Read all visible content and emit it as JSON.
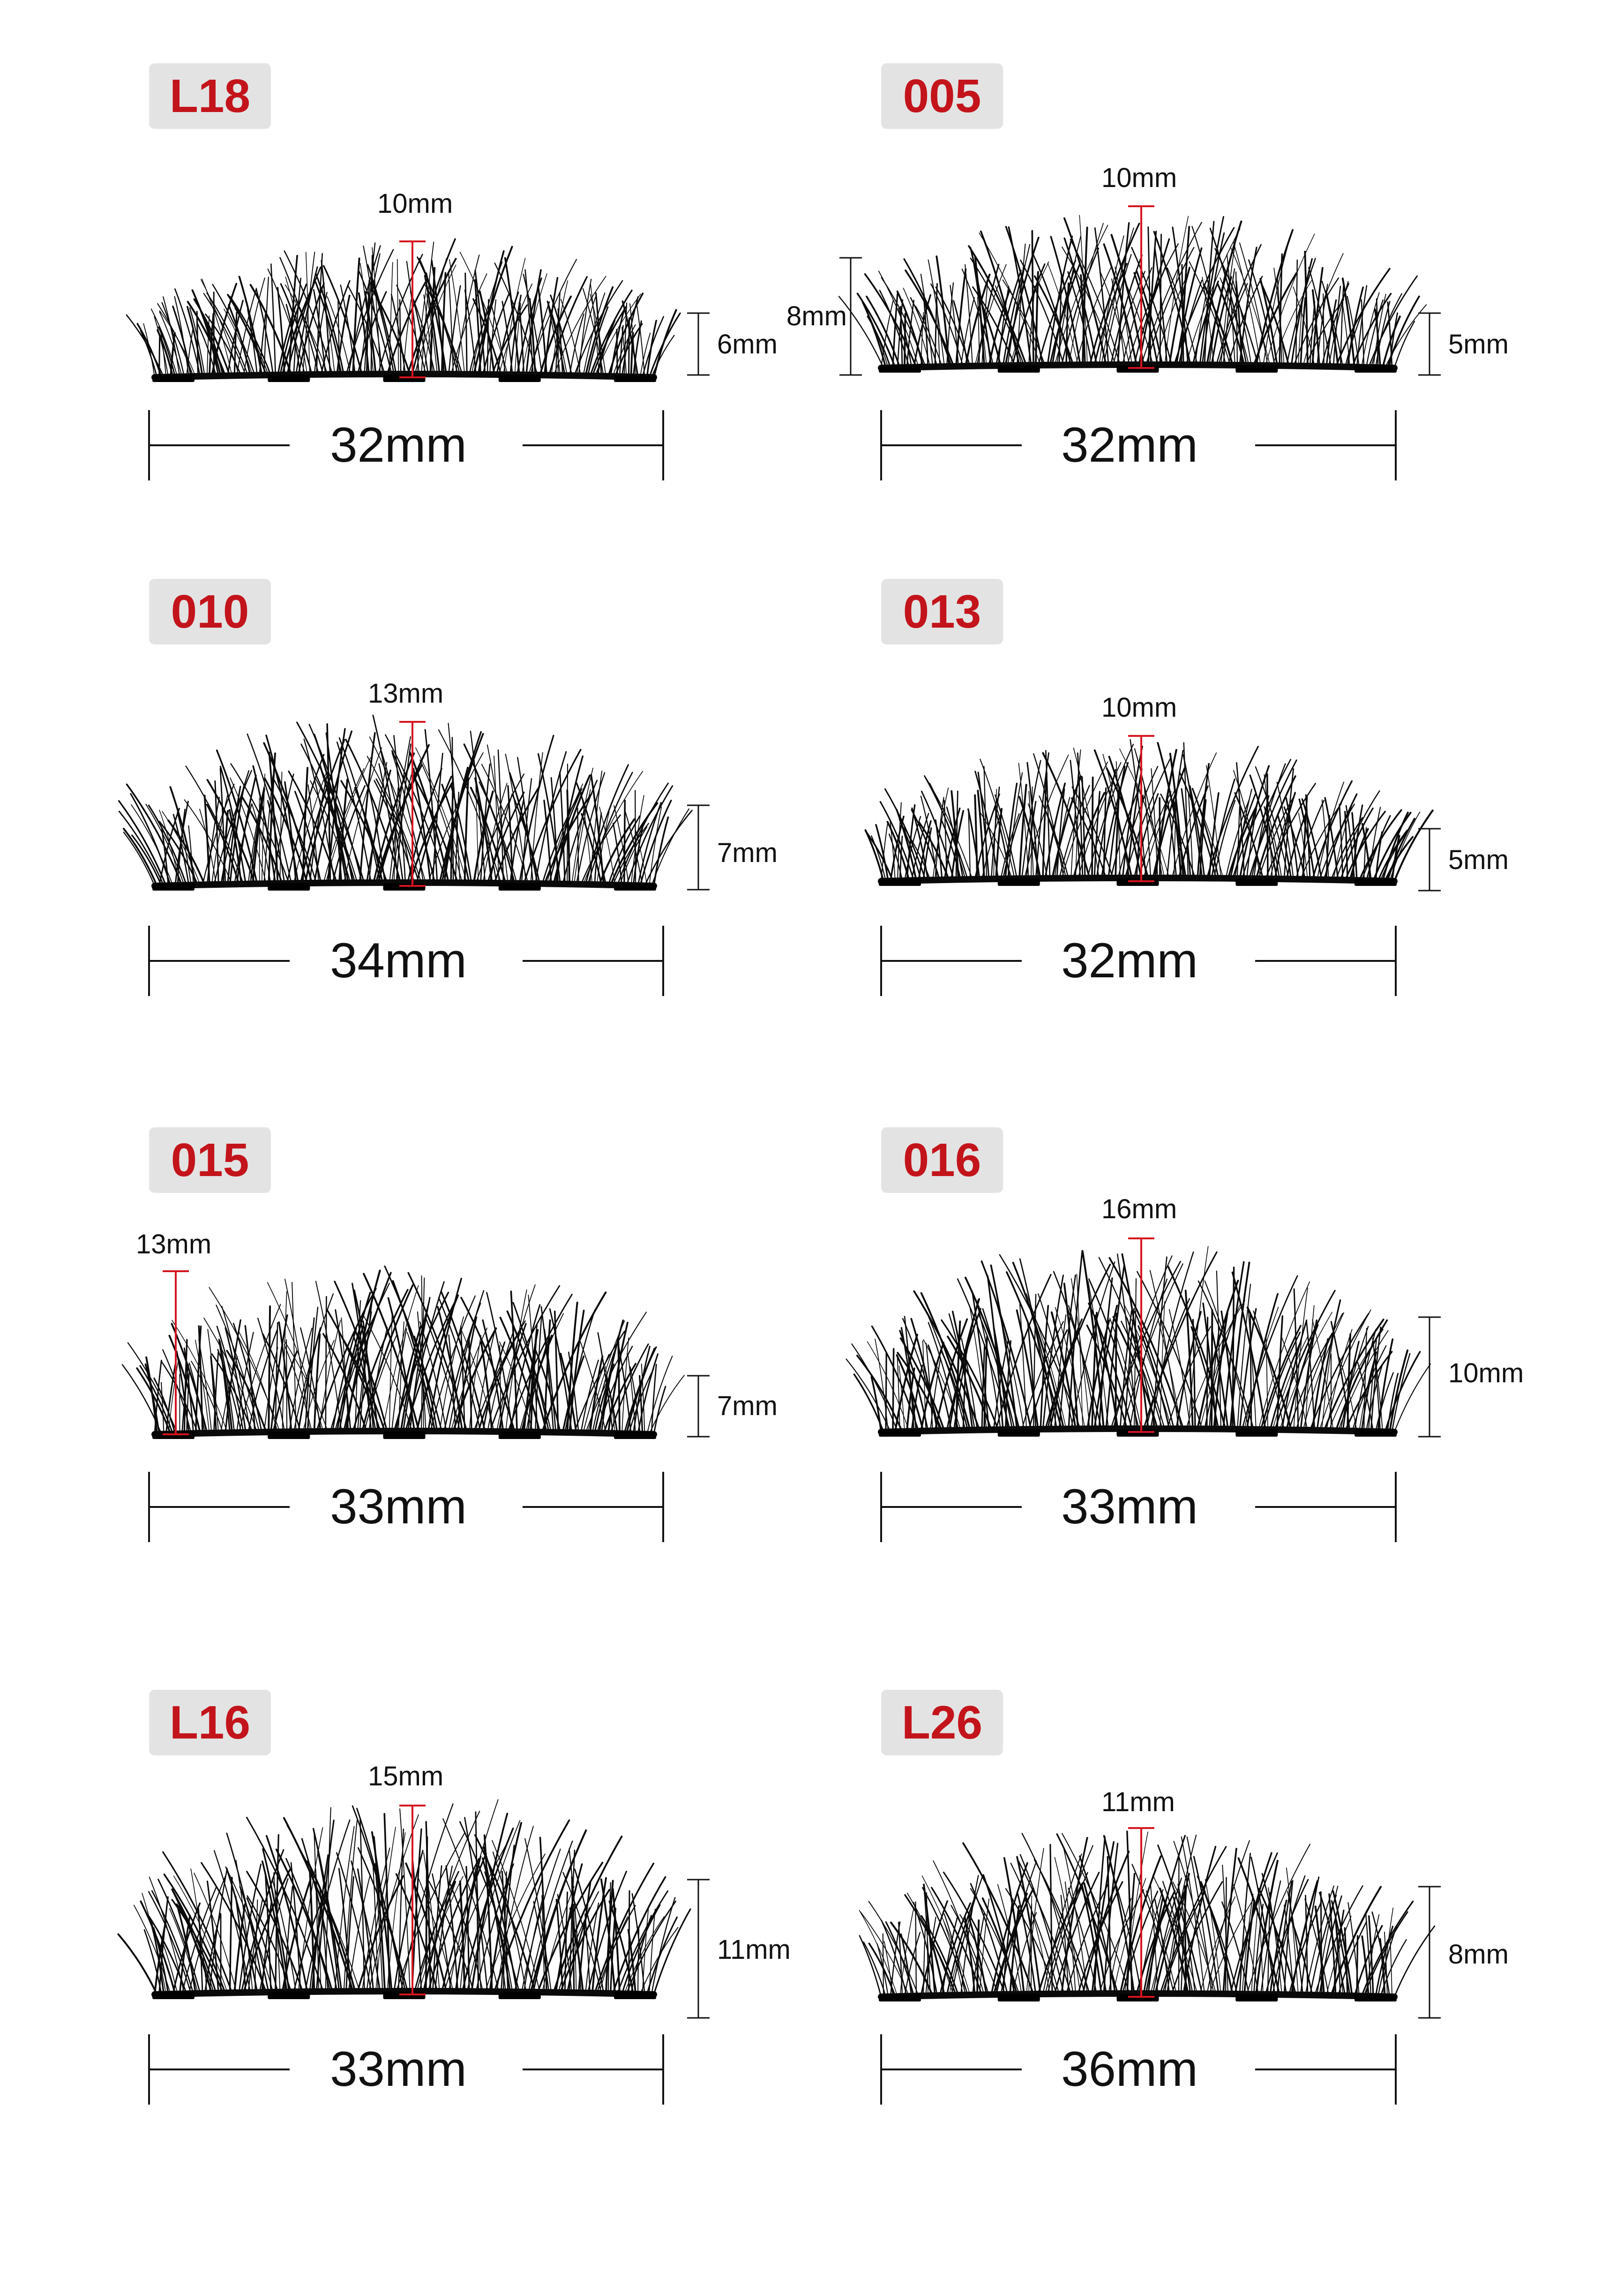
{
  "colors": {
    "badge_bg": "#e3e3e3",
    "badge_text": "#c3141b",
    "measure_red": "#d5151f",
    "lash": "#0a0a0a"
  },
  "items": [
    {
      "code": "L18",
      "center_length": "10mm",
      "side_length": "6mm",
      "width": "32mm"
    },
    {
      "code": "005",
      "center_length": "10mm",
      "side_length": "5mm",
      "extra_length": "8mm",
      "width": "32mm"
    },
    {
      "code": "010",
      "center_length": "13mm",
      "side_length": "7mm",
      "width": "34mm"
    },
    {
      "code": "013",
      "center_length": "10mm",
      "side_length": "5mm",
      "width": "32mm"
    },
    {
      "code": "015",
      "center_length": "13mm",
      "side_length": "7mm",
      "width": "33mm"
    },
    {
      "code": "016",
      "center_length": "16mm",
      "side_length": "10mm",
      "width": "33mm"
    },
    {
      "code": "L16",
      "center_length": "15mm",
      "side_length": "11mm",
      "width": "33mm"
    },
    {
      "code": "L26",
      "center_length": "11mm",
      "side_length": "8mm",
      "width": "36mm"
    }
  ]
}
